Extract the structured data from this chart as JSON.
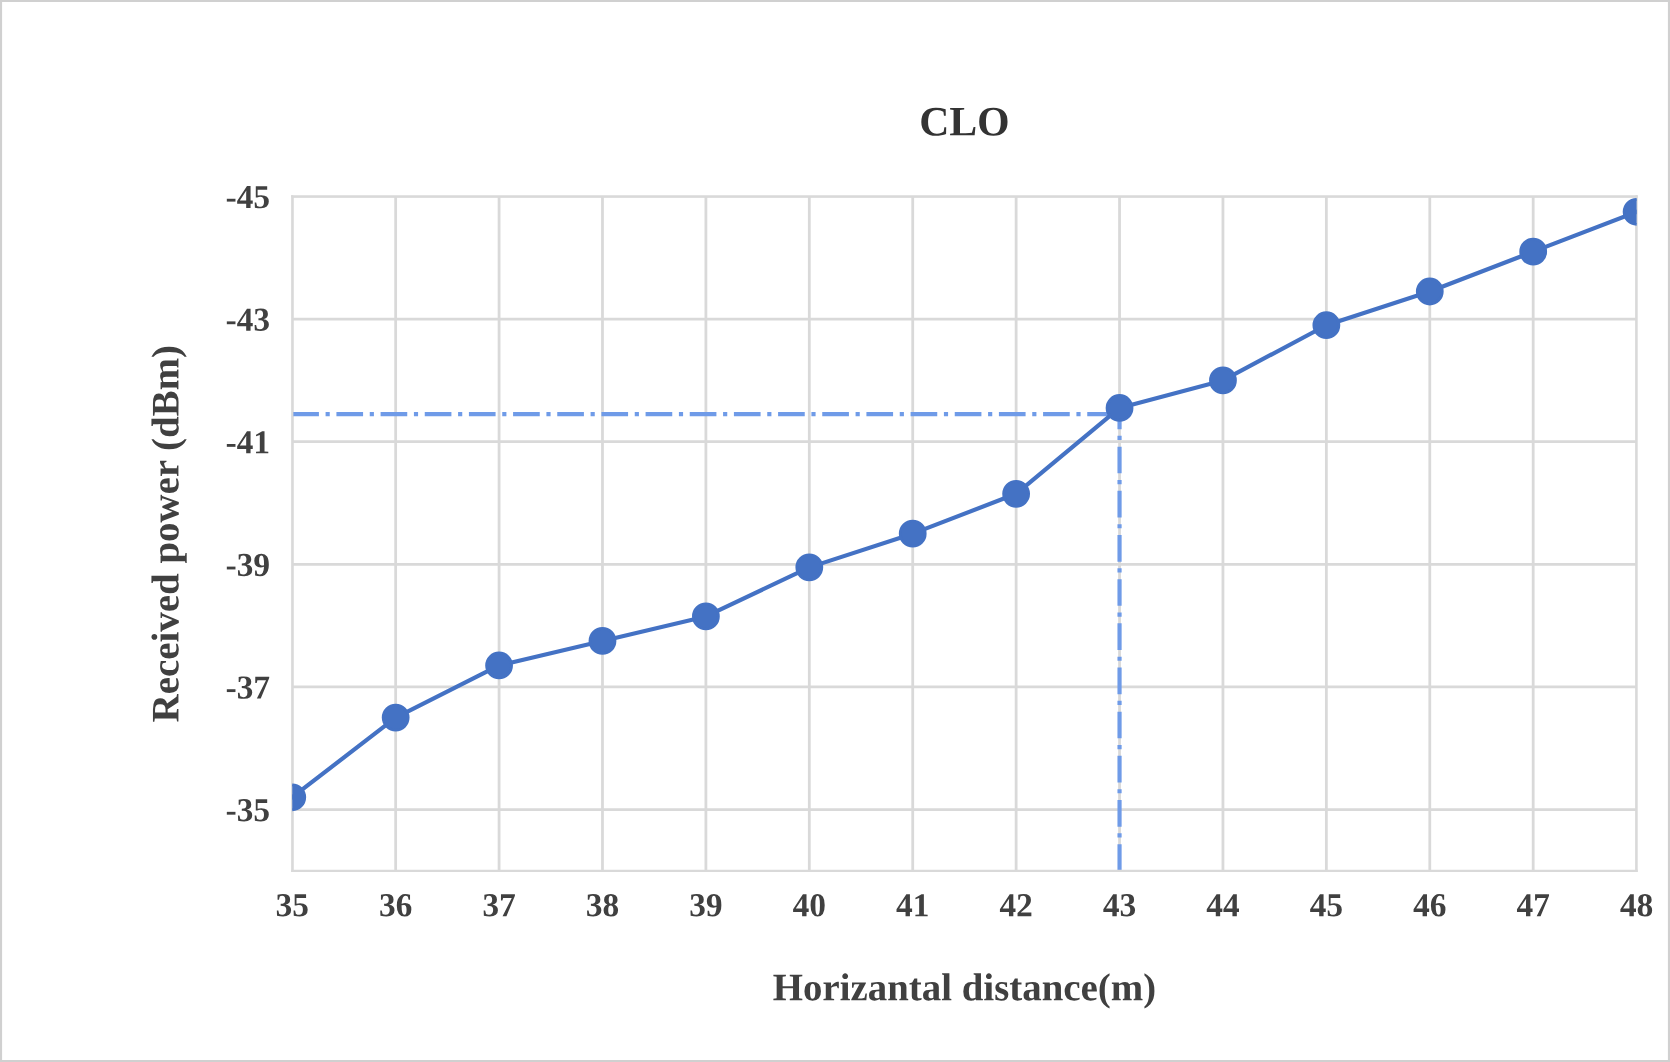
{
  "chart_data": {
    "type": "line",
    "title": "CLO",
    "xlabel": "Horizantal distance(m)",
    "ylabel": "Received power (dBm)",
    "x": [
      35,
      36,
      37,
      38,
      39,
      40,
      41,
      42,
      43,
      44,
      45,
      46,
      47,
      48
    ],
    "series": [
      {
        "color": "#4472c4",
        "values": [
          -35.2,
          -36.5,
          -37.35,
          -37.75,
          -38.15,
          -38.95,
          -39.5,
          -40.15,
          -41.55,
          -42.0,
          -42.9,
          -43.45,
          -44.1,
          -44.75
        ]
      }
    ],
    "xlim": [
      35,
      48
    ],
    "xticks": [
      35,
      36,
      37,
      38,
      39,
      40,
      41,
      42,
      43,
      44,
      45,
      46,
      47,
      48
    ],
    "ylim": [
      -34,
      -45
    ],
    "yticks": [
      -45,
      -43,
      -41,
      -39,
      -37,
      -35
    ],
    "ref_lines": [
      {
        "axis": "y",
        "value": -41.45,
        "label": null,
        "color": "#6f9be8",
        "line_style": "dashdot"
      },
      {
        "axis": "x",
        "value": 43,
        "label": null,
        "color": "#6f9be8",
        "line_style": "dashdot"
      }
    ],
    "grid": true,
    "marker": "circle",
    "line_style": "solid"
  }
}
